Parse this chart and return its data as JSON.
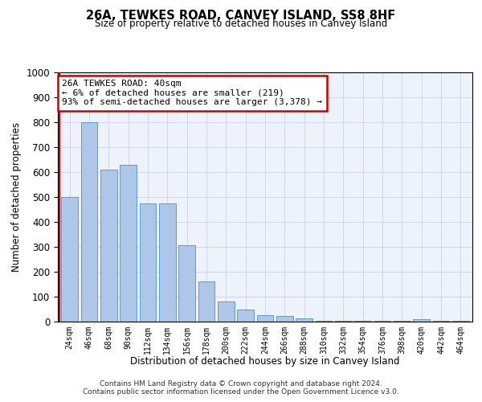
{
  "title": "26A, TEWKES ROAD, CANVEY ISLAND, SS8 8HF",
  "subtitle": "Size of property relative to detached houses in Canvey Island",
  "xlabel": "Distribution of detached houses by size in Canvey Island",
  "ylabel": "Number of detached properties",
  "categories": [
    "24sqm",
    "46sqm",
    "68sqm",
    "90sqm",
    "112sqm",
    "134sqm",
    "156sqm",
    "178sqm",
    "200sqm",
    "222sqm",
    "244sqm",
    "266sqm",
    "288sqm",
    "310sqm",
    "332sqm",
    "354sqm",
    "376sqm",
    "398sqm",
    "420sqm",
    "442sqm",
    "464sqm"
  ],
  "values": [
    500,
    800,
    610,
    630,
    475,
    475,
    305,
    162,
    80,
    47,
    25,
    22,
    13,
    3,
    2,
    2,
    2,
    2,
    10,
    2,
    2
  ],
  "bar_color": "#aec6e8",
  "bar_edge_color": "#5b9bd5",
  "annotation_line1": "26A TEWKES ROAD: 40sqm",
  "annotation_line2": "← 6% of detached houses are smaller (219)",
  "annotation_line3": "93% of semi-detached houses are larger (3,378) →",
  "annotation_box_color": "#ffffff",
  "annotation_box_edge_color": "#cc0000",
  "vline_color": "#cc0000",
  "ylim": [
    0,
    1000
  ],
  "yticks": [
    0,
    100,
    200,
    300,
    400,
    500,
    600,
    700,
    800,
    900,
    1000
  ],
  "grid_color": "#d0d8e8",
  "background_color": "#eef2fa",
  "footer_line1": "Contains HM Land Registry data © Crown copyright and database right 2024.",
  "footer_line2": "Contains public sector information licensed under the Open Government Licence v3.0."
}
